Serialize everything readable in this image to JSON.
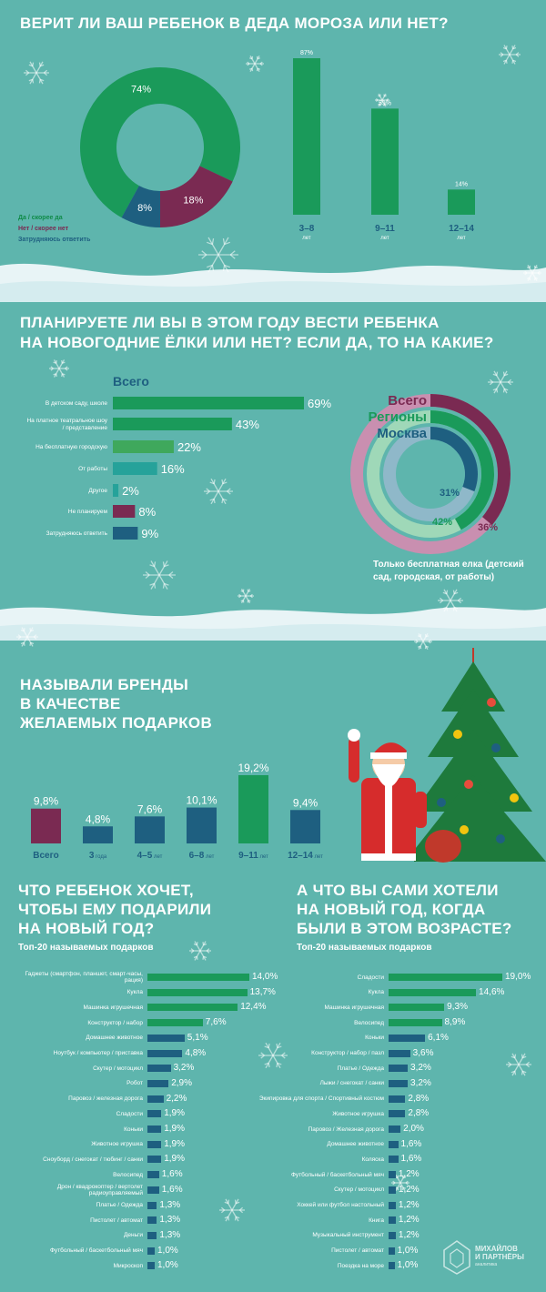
{
  "colors": {
    "bg": "#5eb5ad",
    "green": "#1a9a5a",
    "dark_green": "#0f8b48",
    "purple": "#7a2a52",
    "blue": "#1e5f80",
    "light_green": "#3fa85c",
    "teal": "#26a29a",
    "pink": "#c97aa0"
  },
  "section1": {
    "title": "ВЕРИТ ЛИ ВАШ РЕБЕНОК В ДЕДА МОРОЗА ИЛИ НЕТ?",
    "legend": [
      "Да / скорее да",
      "Нет / скорее нет",
      "Затрудняюсь ответить"
    ]
  },
  "section2": {
    "title_line1": "ПЛАНИРУЕТЕ ЛИ ВЫ В ЭТОМ ГОДУ ВЕСТИ РЕБЕНКА",
    "title_line2": "НА НОВОГОДНИЕ ЁЛКИ ИЛИ НЕТ? ЕСЛИ ДА, ТО НА КАКИЕ?",
    "ring_note": "Только бесплатная елка (детский сад, городская, от работы)"
  },
  "section3": {
    "title_line1": "НАЗЫВАЛИ БРЕНДЫ",
    "title_line2": "В КАЧЕСТВЕ",
    "title_line3": "ЖЕЛАЕМЫХ  ПОДАРКОВ"
  },
  "section4": {
    "left_title_1": "ЧТО РЕБЕНОК ХОЧЕТ,",
    "left_title_2": "ЧТОБЫ ЕМУ ПОДАРИЛИ",
    "left_title_3": "НА НОВЫЙ ГОД?",
    "left_sub": "Топ-20 называемых подарков",
    "right_title_1": "А ЧТО ВЫ САМИ ХОТЕЛИ",
    "right_title_2": "НА НОВЫЙ ГОД, КОГДА",
    "right_title_3": "БЫЛИ В ЭТОМ ВОЗРАСТЕ?",
    "right_sub": "Топ-20 называемых подарков"
  },
  "logo": {
    "line1": "МИХАЙЛОВ",
    "line2": "И ПАРТНЁРЫ",
    "line3": "аналитика"
  },
  "chart_data": [
    {
      "type": "pie",
      "labels": [
        "Да / скорее да",
        "Нет / скорее нет",
        "Затрудняюсь ответить"
      ],
      "values": [
        74,
        18,
        8
      ],
      "value_labels": [
        "74%",
        "18%",
        "8%"
      ],
      "colors": [
        "#1a9a5a",
        "#7a2a52",
        "#1e5f80"
      ]
    },
    {
      "type": "bar",
      "categories": [
        "3–8",
        "9–11",
        "12–14"
      ],
      "category_sub": "лет",
      "values": [
        87,
        59,
        14
      ],
      "value_labels": [
        "87%",
        "59%",
        "14%"
      ],
      "ylim": [
        0,
        87
      ]
    },
    {
      "type": "bar",
      "orientation": "horizontal",
      "title": "Всего",
      "categories": [
        "В детском саду, школе",
        "На платное театральное шоу / представление",
        "На бесплатную городскую",
        "От работы",
        "Другое",
        "Не планируем",
        "Затрудняюсь ответить"
      ],
      "values": [
        69,
        43,
        22,
        16,
        2,
        8,
        9
      ],
      "value_labels": [
        "69%",
        "43%",
        "22%",
        "16%",
        "2%",
        "8%",
        "9%"
      ],
      "colors": [
        "#1a9a5a",
        "#1a9a5a",
        "#3fa85c",
        "#26a29a",
        "#26a29a",
        "#7a2a52",
        "#1e5f80"
      ]
    },
    {
      "type": "pie",
      "subtype": "nested-rings",
      "series": [
        {
          "name": "Всего",
          "value": 36,
          "label": "36%",
          "color": "#7a2a52"
        },
        {
          "name": "Регионы",
          "value": 42,
          "label": "42%",
          "color": "#1a9a5a"
        },
        {
          "name": "Москва",
          "value": 31,
          "label": "31%",
          "color": "#1e5f80"
        }
      ]
    },
    {
      "type": "bar",
      "categories": [
        "Всего",
        "3",
        "4–5",
        "6–8",
        "9–11",
        "12–14"
      ],
      "category_sub": [
        "",
        "года",
        "лет",
        "лет",
        "лет",
        "лет"
      ],
      "values": [
        9.8,
        4.8,
        7.6,
        10.1,
        19.2,
        9.4
      ],
      "value_labels": [
        "9,8%",
        "4,8%",
        "7,6%",
        "10,1%",
        "19,2%",
        "9,4%"
      ],
      "colors": [
        "#7a2a52",
        "#1e5f80",
        "#1e5f80",
        "#1e5f80",
        "#1a9a5a",
        "#1e5f80"
      ]
    },
    {
      "type": "bar",
      "orientation": "horizontal",
      "categories": [
        "Гаджеты (смартфон, планшет, смарт-часы, рация)",
        "Кукла",
        "Машинка игрушечная",
        "Конструктор / набор",
        "Домашнее животное",
        "Ноутбук / компьютер / приставка",
        "Скутер / мотоцикл",
        "Робот",
        "Паровоз / железная дорога",
        "Сладости",
        "Коньки",
        "Животное игрушка",
        "Сноуборд / снегокат / тюбинг / санки",
        "Велосипед",
        "Дрон / квадрокоптер / вертолет радиоуправляемый",
        "Платье / Одежда",
        "Пистолет / автомат",
        "Деньги",
        "Футбольный / баскетбольный мяч",
        "Микроскоп"
      ],
      "values": [
        14.0,
        13.7,
        12.4,
        7.6,
        5.1,
        4.8,
        3.2,
        2.9,
        2.2,
        1.9,
        1.9,
        1.9,
        1.9,
        1.6,
        1.6,
        1.3,
        1.3,
        1.3,
        1.0,
        1.0
      ],
      "value_labels": [
        "14,0%",
        "13,7%",
        "12,4%",
        "7,6%",
        "5,1%",
        "4,8%",
        "3,2%",
        "2,9%",
        "2,2%",
        "1,9%",
        "1,9%",
        "1,9%",
        "1,9%",
        "1,6%",
        "1,6%",
        "1,3%",
        "1,3%",
        "1,3%",
        "1,0%",
        "1,0%"
      ]
    },
    {
      "type": "bar",
      "orientation": "horizontal",
      "categories": [
        "Сладости",
        "Кукла",
        "Машинка игрушечная",
        "Велосипед",
        "Коньки",
        "Конструктор / набор / пазл",
        "Платье / Одежда",
        "Лыжи / снегокат / санки",
        "Экипировка для спорта / Спортивный костюм",
        "Животное игрушка",
        "Паровоз / Железная дорога",
        "Домашнее животное",
        "Коляска",
        "Футбольный / баскетбольный мяч",
        "Скутер / мотоцикл",
        "Хоккей или футбол  настольный",
        "Книга",
        "Музыкальный инструмент",
        "Пистолет / автомат",
        "Поездка на море"
      ],
      "values": [
        19.0,
        14.6,
        9.3,
        8.9,
        6.1,
        3.6,
        3.2,
        3.2,
        2.8,
        2.8,
        2.0,
        1.6,
        1.6,
        1.2,
        1.2,
        1.2,
        1.2,
        1.2,
        1.0,
        1.0
      ],
      "value_labels": [
        "19,0%",
        "14,6%",
        "9,3%",
        "8,9%",
        "6,1%",
        "3,6%",
        "3,2%",
        "3,2%",
        "2,8%",
        "2,8%",
        "2,0%",
        "1,6%",
        "1,6%",
        "1,2%",
        "1,2%",
        "1,2%",
        "1,2%",
        "1,2%",
        "1,0%",
        "1,0%"
      ]
    }
  ]
}
